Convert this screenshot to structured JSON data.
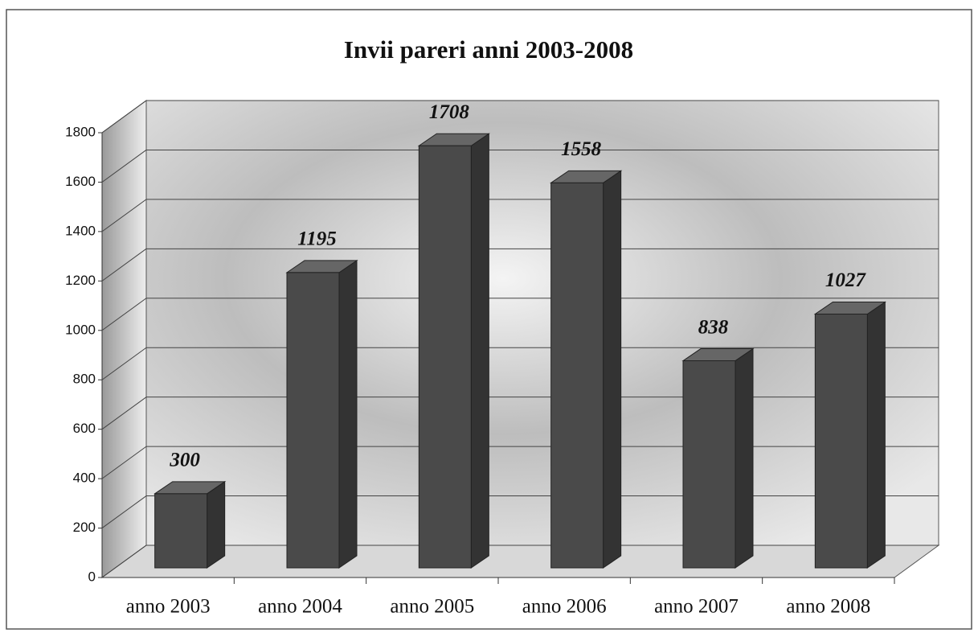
{
  "chart_data": {
    "type": "bar",
    "title": "Invii pareri anni 2003-2008",
    "categories": [
      "anno 2003",
      "anno 2004",
      "anno 2005",
      "anno 2006",
      "anno 2007",
      "anno 2008"
    ],
    "values": [
      300,
      1195,
      1708,
      1558,
      838,
      1027
    ],
    "color": "#4a4a4a",
    "ylim": [
      0,
      1800
    ],
    "yticks": [
      0,
      200,
      400,
      600,
      800,
      1000,
      1200,
      1400,
      1600,
      1800
    ],
    "grid": true
  }
}
